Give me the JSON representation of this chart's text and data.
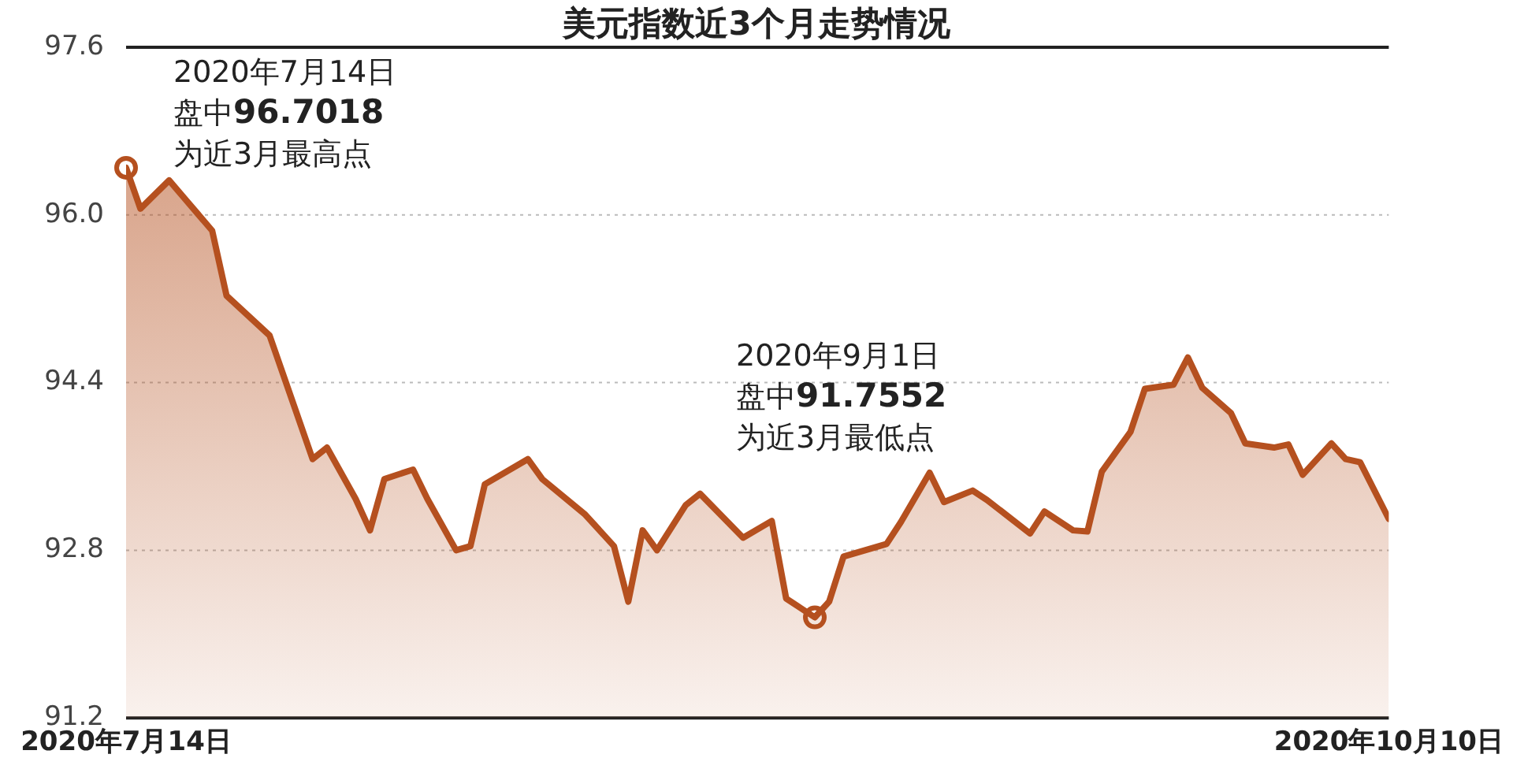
{
  "chart_data": {
    "type": "area",
    "title": "美元指数近3个月走势情况",
    "x": [
      "2020-07-14",
      "2020-07-15",
      "2020-07-17",
      "2020-07-20",
      "2020-07-21",
      "2020-07-24",
      "2020-07-27",
      "2020-07-28",
      "2020-07-30",
      "2020-07-31",
      "2020-08-01",
      "2020-08-03",
      "2020-08-04",
      "2020-08-06",
      "2020-08-07",
      "2020-08-08",
      "2020-08-11",
      "2020-08-12",
      "2020-08-15",
      "2020-08-17",
      "2020-08-18",
      "2020-08-19",
      "2020-08-20",
      "2020-08-22",
      "2020-08-23",
      "2020-08-26",
      "2020-08-28",
      "2020-08-29",
      "2020-08-31",
      "2020-09-01",
      "2020-09-02",
      "2020-09-05",
      "2020-09-06",
      "2020-09-08",
      "2020-09-09",
      "2020-09-11",
      "2020-09-12",
      "2020-09-15",
      "2020-09-16",
      "2020-09-18",
      "2020-09-19",
      "2020-09-20",
      "2020-09-22",
      "2020-09-23",
      "2020-09-25",
      "2020-09-26",
      "2020-09-27",
      "2020-09-29",
      "2020-09-30",
      "2020-10-02",
      "2020-10-03",
      "2020-10-04",
      "2020-10-06",
      "2020-10-07",
      "2020-10-08",
      "2020-10-10"
    ],
    "series": [
      {
        "color": "#b5501f",
        "values": [
          96.45,
          96.06,
          96.33,
          95.85,
          95.23,
          94.85,
          93.67,
          93.78,
          93.29,
          92.99,
          93.48,
          93.57,
          93.29,
          92.8,
          92.84,
          93.43,
          93.67,
          93.48,
          93.14,
          92.84,
          92.31,
          92.99,
          92.8,
          93.23,
          93.34,
          92.92,
          93.08,
          92.34,
          92.16,
          92.31,
          92.74,
          92.86,
          93.07,
          93.54,
          93.26,
          93.37,
          93.28,
          92.96,
          93.17,
          92.99,
          92.98,
          93.55,
          93.93,
          94.34,
          94.38,
          94.64,
          94.35,
          94.11,
          93.82,
          93.78,
          93.81,
          93.52,
          93.82,
          93.67,
          93.64,
          93.1
        ]
      },
      {
        "type": "scatter",
        "color": "#b5501f",
        "x": [
          "2020-07-14",
          "2020-08-31"
        ],
        "values": [
          96.45,
          92.16
        ]
      }
    ],
    "xlim": [
      "2020-07-14",
      "2020-10-10"
    ],
    "xticks": [
      {
        "value": "2020-07-14",
        "label": "2020年7月14日"
      },
      {
        "value": "2020-10-10",
        "label": "2020年10月10日"
      }
    ],
    "ylim": [
      91.2,
      97.6
    ],
    "yticks": [
      91.2,
      92.8,
      94.4,
      {
        "value": 96,
        "label": "96.0"
      },
      97.6
    ],
    "grid": "y",
    "legend": false,
    "line_style": "solid",
    "annotations": [
      "2020年7月14日",
      "盘中96.7018",
      "为近3月最高点",
      "2020年9月1日",
      "盘中91.7552",
      "为近3月最低点"
    ]
  }
}
